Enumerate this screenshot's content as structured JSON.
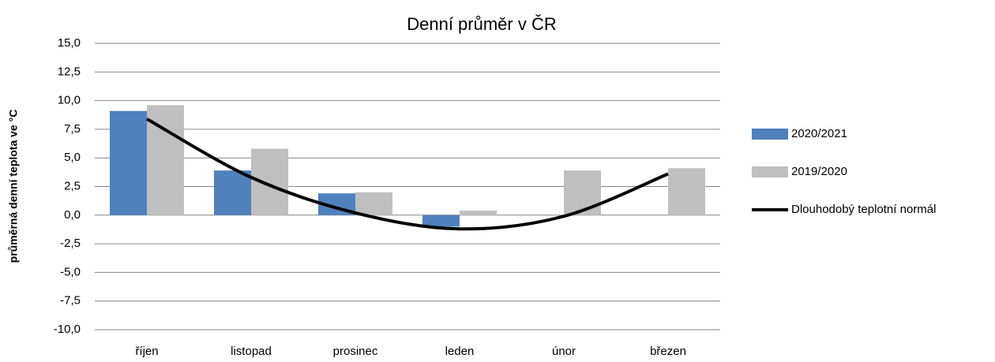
{
  "chart_data": {
    "type": "bar-line",
    "title": "Denní průměr v ČR",
    "y_label": "průměrná denní teplota ve °C",
    "categories": [
      "říjen",
      "listopad",
      "prosinec",
      "leden",
      "únor",
      "březen"
    ],
    "series": [
      {
        "name": "2020/2021",
        "type": "bar",
        "color": "#4f81bd",
        "values": [
          9.1,
          3.9,
          1.9,
          -1.0,
          null,
          null
        ]
      },
      {
        "name": "2019/2020",
        "type": "bar",
        "color": "#bfbfbf",
        "values": [
          9.6,
          5.8,
          2.0,
          0.4,
          3.9,
          4.1
        ]
      },
      {
        "name": "Dlouhodobý teplotní normál",
        "type": "line",
        "color": "#000000",
        "values": [
          8.4,
          3.3,
          0.2,
          -1.2,
          -0.1,
          3.6
        ]
      }
    ],
    "ylim": [
      -10,
      15
    ],
    "yticks": [
      {
        "value": -10,
        "label": "-10,0"
      },
      {
        "value": -7.5,
        "label": "-7,5"
      },
      {
        "value": -5,
        "label": "-5,0"
      },
      {
        "value": -2.5,
        "label": "-2,5"
      },
      {
        "value": 0,
        "label": "0,0"
      },
      {
        "value": 2.5,
        "label": "2,5"
      },
      {
        "value": 5,
        "label": "5,0"
      },
      {
        "value": 7.5,
        "label": "7,5"
      },
      {
        "value": 10,
        "label": "10,0"
      },
      {
        "value": 12.5,
        "label": "12,5"
      },
      {
        "value": 15,
        "label": "15,0"
      }
    ],
    "grid": true,
    "legend": "right"
  }
}
